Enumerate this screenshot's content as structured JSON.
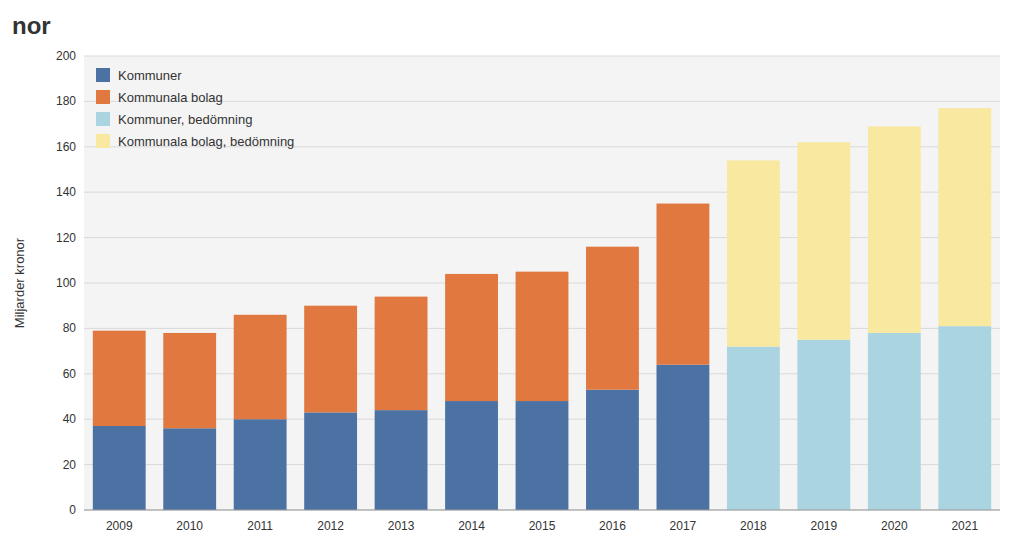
{
  "chart_data": {
    "type": "bar",
    "title": "nor",
    "y_label": "Miljarder kronor",
    "categories": [
      "2009",
      "2010",
      "2011",
      "2012",
      "2013",
      "2014",
      "2015",
      "2016",
      "2017",
      "2018",
      "2019",
      "2020",
      "2021"
    ],
    "series": [
      {
        "name": "Kommuner",
        "color": "#4c72a4",
        "values": [
          37,
          36,
          40,
          43,
          44,
          48,
          48,
          53,
          64,
          0,
          0,
          0,
          0
        ]
      },
      {
        "name": "Kommunala bolag",
        "color": "#e07840",
        "values": [
          42,
          42,
          46,
          47,
          50,
          56,
          57,
          63,
          71,
          0,
          0,
          0,
          0
        ]
      },
      {
        "name": "Kommuner, bedömning",
        "color": "#aad4e0",
        "values": [
          0,
          0,
          0,
          0,
          0,
          0,
          0,
          0,
          0,
          72,
          75,
          78,
          81
        ]
      },
      {
        "name": "Kommunala bolag, bedömning",
        "color": "#f8e8a0",
        "values": [
          0,
          0,
          0,
          0,
          0,
          0,
          0,
          0,
          0,
          82,
          87,
          91,
          96
        ]
      }
    ],
    "stacked": true,
    "ylim": [
      0,
      200
    ],
    "yticks": [
      0,
      20,
      40,
      60,
      80,
      100,
      120,
      140,
      160,
      180,
      200
    ],
    "grid": true,
    "legend": "upper-left"
  }
}
